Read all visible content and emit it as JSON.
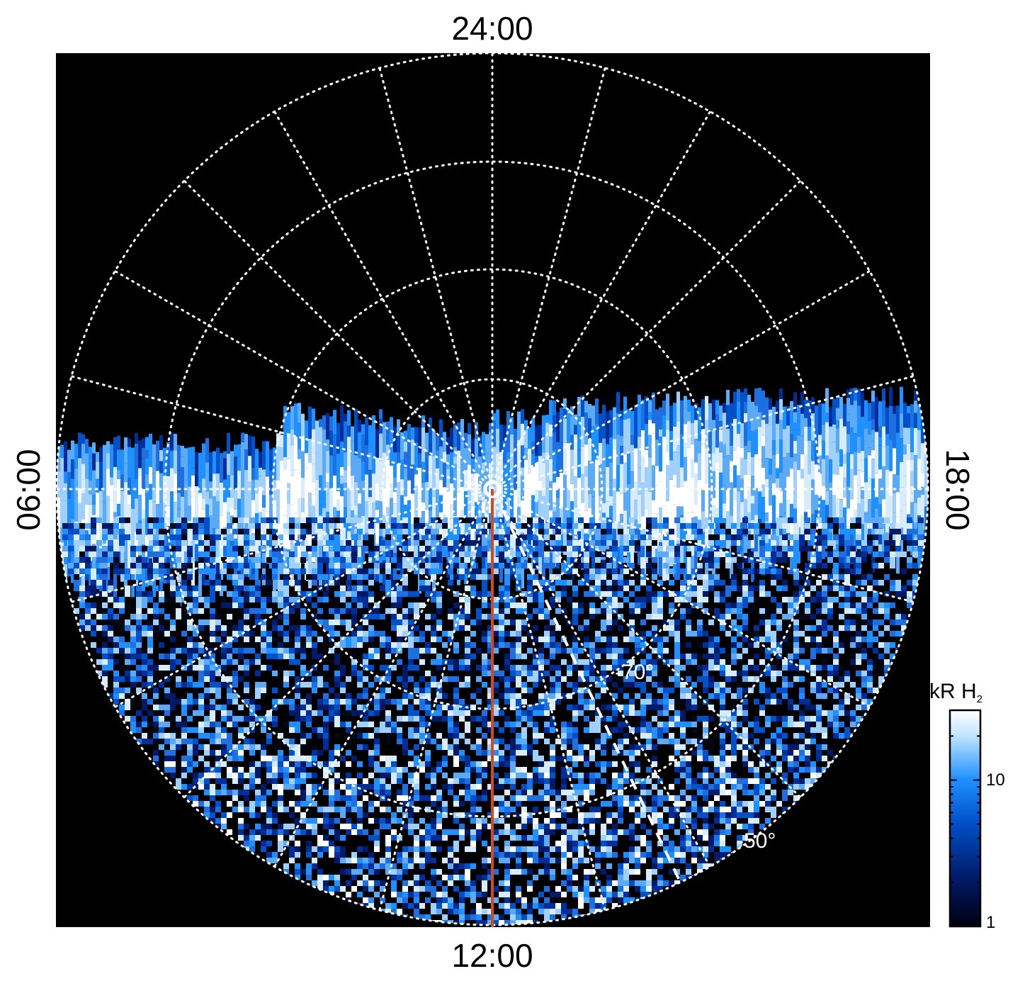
{
  "figure": {
    "local_time_labels": {
      "top": "24:00",
      "bottom": "12:00",
      "left": "06:00",
      "right": "18:00"
    },
    "latitude_labels": [
      "-70°",
      "-50°"
    ],
    "colorbar": {
      "title_main": "kR H",
      "title_sub": "2",
      "ticks": [
        "10",
        "1"
      ],
      "colors": [
        "#000010",
        "#001a66",
        "#0050c8",
        "#1e90ff",
        "#bfe4ff",
        "#ffffff"
      ]
    },
    "colors": {
      "background": "#000000",
      "grid": "#ffffff",
      "meridian_line": "#d24a1e"
    }
  }
}
